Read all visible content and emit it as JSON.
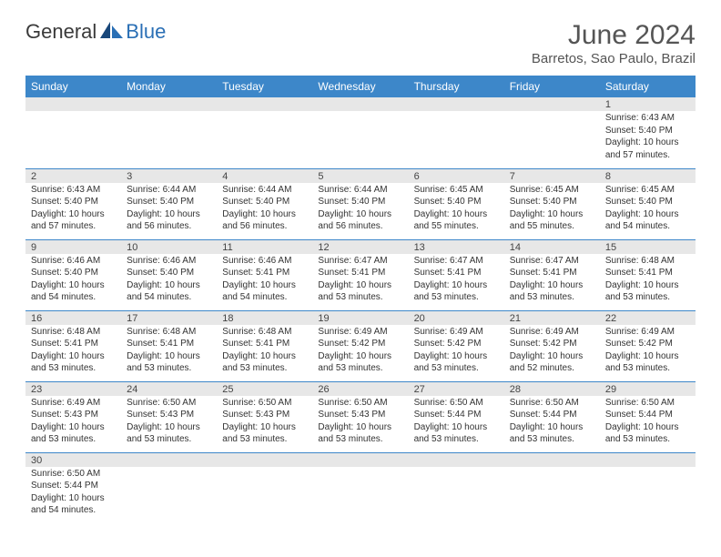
{
  "brand": {
    "part1": "General",
    "part2": "Blue"
  },
  "title": "June 2024",
  "location": "Barretos, Sao Paulo, Brazil",
  "colors": {
    "header_bg": "#3d87c9",
    "header_text": "#ffffff",
    "daynum_bg": "#e7e7e7",
    "border": "#3d87c9",
    "brand_dark": "#3a3a3a",
    "brand_blue": "#2a6fb5"
  },
  "weekdays": [
    "Sunday",
    "Monday",
    "Tuesday",
    "Wednesday",
    "Thursday",
    "Friday",
    "Saturday"
  ],
  "weeks": [
    [
      {
        "empty": true
      },
      {
        "empty": true
      },
      {
        "empty": true
      },
      {
        "empty": true
      },
      {
        "empty": true
      },
      {
        "empty": true
      },
      {
        "day": "1",
        "sunrise": "Sunrise: 6:43 AM",
        "sunset": "Sunset: 5:40 PM",
        "daylight": "Daylight: 10 hours and 57 minutes."
      }
    ],
    [
      {
        "day": "2",
        "sunrise": "Sunrise: 6:43 AM",
        "sunset": "Sunset: 5:40 PM",
        "daylight": "Daylight: 10 hours and 57 minutes."
      },
      {
        "day": "3",
        "sunrise": "Sunrise: 6:44 AM",
        "sunset": "Sunset: 5:40 PM",
        "daylight": "Daylight: 10 hours and 56 minutes."
      },
      {
        "day": "4",
        "sunrise": "Sunrise: 6:44 AM",
        "sunset": "Sunset: 5:40 PM",
        "daylight": "Daylight: 10 hours and 56 minutes."
      },
      {
        "day": "5",
        "sunrise": "Sunrise: 6:44 AM",
        "sunset": "Sunset: 5:40 PM",
        "daylight": "Daylight: 10 hours and 56 minutes."
      },
      {
        "day": "6",
        "sunrise": "Sunrise: 6:45 AM",
        "sunset": "Sunset: 5:40 PM",
        "daylight": "Daylight: 10 hours and 55 minutes."
      },
      {
        "day": "7",
        "sunrise": "Sunrise: 6:45 AM",
        "sunset": "Sunset: 5:40 PM",
        "daylight": "Daylight: 10 hours and 55 minutes."
      },
      {
        "day": "8",
        "sunrise": "Sunrise: 6:45 AM",
        "sunset": "Sunset: 5:40 PM",
        "daylight": "Daylight: 10 hours and 54 minutes."
      }
    ],
    [
      {
        "day": "9",
        "sunrise": "Sunrise: 6:46 AM",
        "sunset": "Sunset: 5:40 PM",
        "daylight": "Daylight: 10 hours and 54 minutes."
      },
      {
        "day": "10",
        "sunrise": "Sunrise: 6:46 AM",
        "sunset": "Sunset: 5:40 PM",
        "daylight": "Daylight: 10 hours and 54 minutes."
      },
      {
        "day": "11",
        "sunrise": "Sunrise: 6:46 AM",
        "sunset": "Sunset: 5:41 PM",
        "daylight": "Daylight: 10 hours and 54 minutes."
      },
      {
        "day": "12",
        "sunrise": "Sunrise: 6:47 AM",
        "sunset": "Sunset: 5:41 PM",
        "daylight": "Daylight: 10 hours and 53 minutes."
      },
      {
        "day": "13",
        "sunrise": "Sunrise: 6:47 AM",
        "sunset": "Sunset: 5:41 PM",
        "daylight": "Daylight: 10 hours and 53 minutes."
      },
      {
        "day": "14",
        "sunrise": "Sunrise: 6:47 AM",
        "sunset": "Sunset: 5:41 PM",
        "daylight": "Daylight: 10 hours and 53 minutes."
      },
      {
        "day": "15",
        "sunrise": "Sunrise: 6:48 AM",
        "sunset": "Sunset: 5:41 PM",
        "daylight": "Daylight: 10 hours and 53 minutes."
      }
    ],
    [
      {
        "day": "16",
        "sunrise": "Sunrise: 6:48 AM",
        "sunset": "Sunset: 5:41 PM",
        "daylight": "Daylight: 10 hours and 53 minutes."
      },
      {
        "day": "17",
        "sunrise": "Sunrise: 6:48 AM",
        "sunset": "Sunset: 5:41 PM",
        "daylight": "Daylight: 10 hours and 53 minutes."
      },
      {
        "day": "18",
        "sunrise": "Sunrise: 6:48 AM",
        "sunset": "Sunset: 5:41 PM",
        "daylight": "Daylight: 10 hours and 53 minutes."
      },
      {
        "day": "19",
        "sunrise": "Sunrise: 6:49 AM",
        "sunset": "Sunset: 5:42 PM",
        "daylight": "Daylight: 10 hours and 53 minutes."
      },
      {
        "day": "20",
        "sunrise": "Sunrise: 6:49 AM",
        "sunset": "Sunset: 5:42 PM",
        "daylight": "Daylight: 10 hours and 53 minutes."
      },
      {
        "day": "21",
        "sunrise": "Sunrise: 6:49 AM",
        "sunset": "Sunset: 5:42 PM",
        "daylight": "Daylight: 10 hours and 52 minutes."
      },
      {
        "day": "22",
        "sunrise": "Sunrise: 6:49 AM",
        "sunset": "Sunset: 5:42 PM",
        "daylight": "Daylight: 10 hours and 53 minutes."
      }
    ],
    [
      {
        "day": "23",
        "sunrise": "Sunrise: 6:49 AM",
        "sunset": "Sunset: 5:43 PM",
        "daylight": "Daylight: 10 hours and 53 minutes."
      },
      {
        "day": "24",
        "sunrise": "Sunrise: 6:50 AM",
        "sunset": "Sunset: 5:43 PM",
        "daylight": "Daylight: 10 hours and 53 minutes."
      },
      {
        "day": "25",
        "sunrise": "Sunrise: 6:50 AM",
        "sunset": "Sunset: 5:43 PM",
        "daylight": "Daylight: 10 hours and 53 minutes."
      },
      {
        "day": "26",
        "sunrise": "Sunrise: 6:50 AM",
        "sunset": "Sunset: 5:43 PM",
        "daylight": "Daylight: 10 hours and 53 minutes."
      },
      {
        "day": "27",
        "sunrise": "Sunrise: 6:50 AM",
        "sunset": "Sunset: 5:44 PM",
        "daylight": "Daylight: 10 hours and 53 minutes."
      },
      {
        "day": "28",
        "sunrise": "Sunrise: 6:50 AM",
        "sunset": "Sunset: 5:44 PM",
        "daylight": "Daylight: 10 hours and 53 minutes."
      },
      {
        "day": "29",
        "sunrise": "Sunrise: 6:50 AM",
        "sunset": "Sunset: 5:44 PM",
        "daylight": "Daylight: 10 hours and 53 minutes."
      }
    ],
    [
      {
        "day": "30",
        "sunrise": "Sunrise: 6:50 AM",
        "sunset": "Sunset: 5:44 PM",
        "daylight": "Daylight: 10 hours and 54 minutes."
      },
      {
        "empty": true
      },
      {
        "empty": true
      },
      {
        "empty": true
      },
      {
        "empty": true
      },
      {
        "empty": true
      },
      {
        "empty": true
      }
    ]
  ]
}
